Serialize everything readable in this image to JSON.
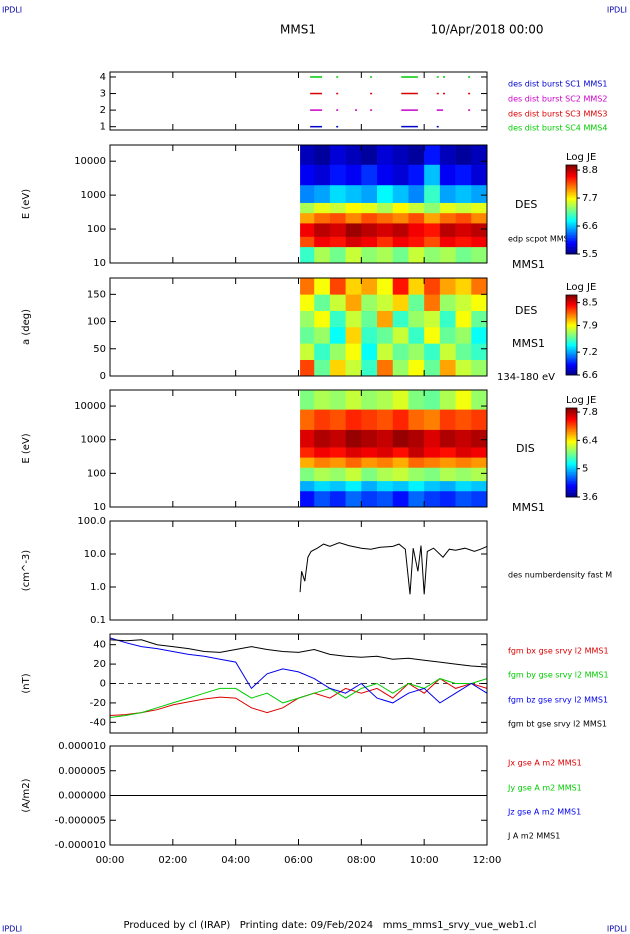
{
  "header": {
    "corners": [
      "IPDLI",
      "IPDLI",
      "IPDLI",
      "IPDLI"
    ],
    "title": "MMS1",
    "date": "10/Apr/2018 00:00"
  },
  "footer": "Produced by cl (IRAP)   Printing date: 09/Feb/2024   mms_mms1_srvy_vue_web1.cl",
  "chart_data": [
    {
      "type": "timeline",
      "ylim": [
        0.8,
        4.3
      ],
      "yticks": [
        1,
        2,
        3,
        4
      ],
      "series": [
        {
          "name": "des dist burst SC1 MMS1",
          "color": "#0000cc",
          "level": 1,
          "intervals": [
            [
              6.37,
              6.75
            ],
            [
              7.2,
              7.25
            ],
            [
              9.27,
              9.8
            ],
            [
              10.4,
              10.45
            ]
          ]
        },
        {
          "name": "des dist burst SC2 MMS2",
          "color": "#cc00cc",
          "level": 2,
          "intervals": [
            [
              6.37,
              6.75
            ],
            [
              7.2,
              7.25
            ],
            [
              7.8,
              7.85
            ],
            [
              8.28,
              8.33
            ],
            [
              9.27,
              9.8
            ],
            [
              10.4,
              10.6
            ],
            [
              11.4,
              11.45
            ]
          ]
        },
        {
          "name": "des dist burst SC3 MMS3",
          "color": "#dd0000",
          "level": 3,
          "intervals": [
            [
              6.37,
              6.75
            ],
            [
              7.2,
              7.25
            ],
            [
              8.28,
              8.33
            ],
            [
              9.27,
              9.8
            ],
            [
              10.4,
              10.45
            ],
            [
              10.6,
              10.65
            ],
            [
              11.4,
              11.45
            ]
          ]
        },
        {
          "name": "des dist burst SC4 MMS4",
          "color": "#00cc00",
          "level": 4,
          "intervals": [
            [
              6.37,
              6.75
            ],
            [
              7.2,
              7.25
            ],
            [
              8.28,
              8.33
            ],
            [
              9.27,
              9.8
            ],
            [
              10.4,
              10.45
            ],
            [
              10.6,
              10.65
            ],
            [
              11.4,
              11.45
            ]
          ]
        }
      ]
    },
    {
      "type": "heatmap",
      "ylabel": "E (eV)",
      "log": true,
      "ylim": [
        10,
        30000
      ],
      "yticks": [
        10,
        100,
        1000,
        10000
      ],
      "labels": [
        "DES",
        "edp scpot MMS1",
        "MMS1"
      ],
      "colorbar": {
        "title": "Log JE",
        "clim": [
          5.5,
          9.0
        ],
        "ticks": [
          5.5,
          6.6,
          7.7,
          8.8
        ]
      },
      "xedges": [
        6.05,
        6.5,
        7,
        7.5,
        8,
        8.5,
        9,
        9.5,
        10,
        10.5,
        11,
        11.5,
        12
      ],
      "yedges": [
        10,
        30,
        60,
        150,
        300,
        600,
        2000,
        8000,
        30000
      ],
      "z": [
        [
          7.0,
          7.4,
          7.2,
          7.5,
          7.3,
          7.4,
          7.2,
          7.5,
          7.3,
          7.4,
          7.2,
          7.3
        ],
        [
          8.3,
          8.6,
          8.5,
          8.7,
          8.6,
          8.4,
          8.6,
          8.5,
          8.3,
          8.6,
          8.5,
          8.6
        ],
        [
          8.6,
          8.8,
          8.7,
          8.9,
          8.8,
          8.7,
          8.8,
          8.6,
          8.5,
          8.8,
          8.7,
          8.8
        ],
        [
          8.0,
          8.2,
          8.3,
          8.1,
          8.3,
          8.2,
          8.1,
          8.3,
          8.0,
          8.2,
          8.3,
          8.1
        ],
        [
          7.4,
          7.6,
          7.5,
          7.7,
          7.6,
          7.4,
          7.7,
          7.5,
          7.3,
          7.6,
          7.5,
          7.6
        ],
        [
          6.4,
          6.5,
          6.7,
          6.6,
          6.5,
          6.8,
          6.6,
          6.4,
          7.0,
          6.5,
          6.6,
          6.5
        ],
        [
          5.9,
          5.8,
          6.0,
          5.9,
          6.1,
          5.9,
          5.8,
          6.0,
          6.6,
          5.9,
          6.0,
          5.8
        ],
        [
          5.7,
          5.6,
          5.8,
          5.7,
          5.6,
          5.8,
          5.7,
          5.6,
          6.0,
          5.7,
          5.6,
          5.7
        ]
      ]
    },
    {
      "type": "heatmap",
      "ylabel": "a (deg)",
      "ylim": [
        0,
        180
      ],
      "yticks": [
        0,
        50,
        100,
        150
      ],
      "labels": [
        "DES",
        "MMS1",
        "134-180 eV"
      ],
      "colorbar": {
        "title": "Log JE",
        "clim": [
          6.6,
          8.7
        ],
        "ticks": [
          6.6,
          7.2,
          7.9,
          8.5
        ]
      },
      "xedges": [
        6.05,
        6.5,
        7,
        7.5,
        8,
        8.5,
        9,
        9.5,
        10,
        10.5,
        11,
        11.5,
        12
      ],
      "yedges": [
        0,
        30,
        60,
        90,
        120,
        150,
        180
      ],
      "z": [
        [
          8.3,
          7.6,
          8.0,
          7.8,
          7.5,
          8.2,
          7.7,
          7.9,
          7.6,
          8.1,
          7.8,
          7.7
        ],
        [
          7.8,
          7.5,
          7.7,
          7.9,
          7.4,
          7.8,
          7.6,
          7.7,
          7.5,
          7.8,
          7.6,
          7.5
        ],
        [
          7.6,
          7.7,
          7.4,
          8.0,
          7.5,
          7.6,
          7.8,
          7.5,
          7.9,
          7.6,
          7.7,
          7.4
        ],
        [
          7.7,
          7.9,
          7.5,
          7.8,
          7.6,
          8.1,
          7.5,
          7.7,
          7.8,
          7.5,
          7.9,
          7.6
        ],
        [
          7.9,
          7.6,
          7.8,
          8.1,
          7.7,
          7.8,
          8.0,
          7.6,
          8.2,
          7.7,
          7.8,
          7.9
        ],
        [
          8.2,
          7.9,
          8.3,
          8.0,
          8.1,
          7.9,
          8.4,
          8.0,
          8.3,
          8.1,
          8.0,
          8.2
        ]
      ]
    },
    {
      "type": "heatmap",
      "ylabel": "E (eV)",
      "log": true,
      "ylim": [
        10,
        30000
      ],
      "yticks": [
        10,
        100,
        1000,
        10000
      ],
      "labels": [
        "DIS",
        "MMS1"
      ],
      "colorbar": {
        "title": "Log JE",
        "clim": [
          3.6,
          8.0
        ],
        "ticks": [
          3.6,
          5.0,
          6.4,
          7.8
        ]
      },
      "xedges": [
        6.05,
        6.5,
        7,
        7.5,
        8,
        8.5,
        9,
        9.5,
        10,
        10.5,
        11,
        11.5,
        12
      ],
      "yedges": [
        10,
        30,
        60,
        150,
        300,
        600,
        2000,
        8000,
        30000
      ],
      "z": [
        [
          4.2,
          4.5,
          4.3,
          4.6,
          4.4,
          4.5,
          4.2,
          4.6,
          4.4,
          4.3,
          4.5,
          4.4
        ],
        [
          4.9,
          5.1,
          5.0,
          5.2,
          4.9,
          5.1,
          5.0,
          5.2,
          5.0,
          4.9,
          5.1,
          5.0
        ],
        [
          5.8,
          6.0,
          5.9,
          6.1,
          5.8,
          6.0,
          6.1,
          5.9,
          5.8,
          6.0,
          5.9,
          6.0
        ],
        [
          6.7,
          6.9,
          6.8,
          7.0,
          6.8,
          6.9,
          6.7,
          7.0,
          6.9,
          6.8,
          6.9,
          6.8
        ],
        [
          7.3,
          7.5,
          7.4,
          7.6,
          7.5,
          7.6,
          7.4,
          7.7,
          7.5,
          7.4,
          7.6,
          7.5
        ],
        [
          7.6,
          7.8,
          7.7,
          7.9,
          7.8,
          7.7,
          7.9,
          7.8,
          7.6,
          7.8,
          7.7,
          7.8
        ],
        [
          7.0,
          7.2,
          7.1,
          7.3,
          7.2,
          7.1,
          7.3,
          7.0,
          6.9,
          7.2,
          7.1,
          7.2
        ],
        [
          5.8,
          6.0,
          5.9,
          6.1,
          5.9,
          6.0,
          6.2,
          5.8,
          5.7,
          6.0,
          6.3,
          5.9
        ]
      ]
    },
    {
      "type": "line",
      "ylabel": "(cm^-3)",
      "log": true,
      "ylim": [
        0.1,
        100
      ],
      "yticks": [
        0.1,
        {
          "value": 1,
          "label": "1.0"
        },
        {
          "value": 10,
          "label": "10.0"
        },
        {
          "value": 100,
          "label": "100.0"
        }
      ],
      "x": [
        6.05,
        6.1,
        6.2,
        6.3,
        6.4,
        6.6,
        6.8,
        7.0,
        7.3,
        7.6,
        8.0,
        8.3,
        8.6,
        9.0,
        9.2,
        9.4,
        9.55,
        9.65,
        9.8,
        9.9,
        10.0,
        10.1,
        10.3,
        10.6,
        10.8,
        11.0,
        11.3,
        11.6,
        11.8,
        12.0
      ],
      "series": [
        {
          "name": "des numberdensity fast M",
          "color": "#000000",
          "values": [
            0.7,
            3,
            1.5,
            8,
            12,
            15,
            20,
            17,
            22,
            18,
            15,
            14,
            16,
            17,
            20,
            14,
            0.6,
            15,
            3,
            18,
            0.6,
            12,
            15,
            8,
            14,
            13,
            15,
            12,
            14,
            17
          ]
        }
      ]
    },
    {
      "type": "line",
      "ylabel": "(nT)",
      "ylim": [
        -51,
        51
      ],
      "yticks": [
        -40,
        -20,
        0,
        20,
        40
      ],
      "zero_line": true,
      "x": [
        0,
        0.5,
        1,
        1.5,
        2,
        2.5,
        3,
        3.5,
        4,
        4.5,
        5,
        5.5,
        6,
        6.5,
        7,
        7.5,
        8,
        8.5,
        9,
        9.5,
        10,
        10.5,
        11,
        11.5,
        12
      ],
      "series": [
        {
          "name": "fgm bx gse srvy l2 MMS1",
          "color": "#dd0000",
          "values": [
            -33,
            -32,
            -30,
            -27,
            -22,
            -19,
            -16,
            -14,
            -15,
            -25,
            -30,
            -25,
            -15,
            -10,
            -15,
            -5,
            -10,
            -5,
            -15,
            0,
            -10,
            5,
            -5,
            0,
            -5
          ]
        },
        {
          "name": "fgm by gse srvy l2 MMS1",
          "color": "#00cc00",
          "values": [
            -35,
            -33,
            -30,
            -25,
            -20,
            -15,
            -10,
            -5,
            -5,
            -15,
            -10,
            -20,
            -15,
            -10,
            -5,
            -15,
            -5,
            0,
            -10,
            0,
            -5,
            5,
            0,
            0,
            5
          ]
        },
        {
          "name": "fgm bz gse srvy l2 MMS1",
          "color": "#0000ee",
          "values": [
            47,
            42,
            38,
            36,
            33,
            30,
            28,
            25,
            22,
            -5,
            10,
            15,
            12,
            5,
            -5,
            -10,
            0,
            -15,
            -20,
            -10,
            -5,
            -20,
            -10,
            0,
            -10
          ]
        },
        {
          "name": "fgm bt gse srvy l2 MMS1",
          "color": "#000000",
          "values": [
            45,
            44,
            45,
            40,
            38,
            36,
            33,
            32,
            35,
            38,
            35,
            33,
            32,
            35,
            30,
            28,
            27,
            28,
            25,
            26,
            24,
            22,
            20,
            18,
            17
          ]
        }
      ]
    },
    {
      "type": "line",
      "ylabel": "(A/m2)",
      "ylim": [
        -1e-05,
        1e-05
      ],
      "yticks": [
        {
          "value": -1e-05,
          "label": "-0.000010"
        },
        {
          "value": -5e-06,
          "label": "-0.000005"
        },
        {
          "value": 0,
          "label": "0.000000"
        },
        {
          "value": 5e-06,
          "label": "0.000005"
        },
        {
          "value": 1e-05,
          "label": "0.000010"
        }
      ],
      "xlim": [
        0,
        12
      ],
      "xticks": [
        {
          "value": 0,
          "label": "00:00"
        },
        {
          "value": 2,
          "label": "02:00"
        },
        {
          "value": 4,
          "label": "04:00"
        },
        {
          "value": 6,
          "label": "06:00"
        },
        {
          "value": 8,
          "label": "08:00"
        },
        {
          "value": 10,
          "label": "10:00"
        },
        {
          "value": 12,
          "label": "12:00"
        }
      ],
      "x": [
        0,
        3,
        6,
        9,
        12
      ],
      "series": [
        {
          "name": "Jx gse A m2 MMS1",
          "color": "#dd0000",
          "values": [
            0,
            0,
            0,
            0,
            0
          ]
        },
        {
          "name": "Jy gse A m2 MMS1",
          "color": "#00cc00",
          "values": [
            0,
            0,
            0,
            0,
            0
          ]
        },
        {
          "name": "Jz gse A m2 MMS1",
          "color": "#0000ee",
          "values": [
            0,
            0,
            0,
            0,
            0
          ]
        },
        {
          "name": "J A m2 MMS1",
          "color": "#000000",
          "values": [
            0,
            0,
            0,
            0,
            0
          ]
        }
      ]
    }
  ]
}
